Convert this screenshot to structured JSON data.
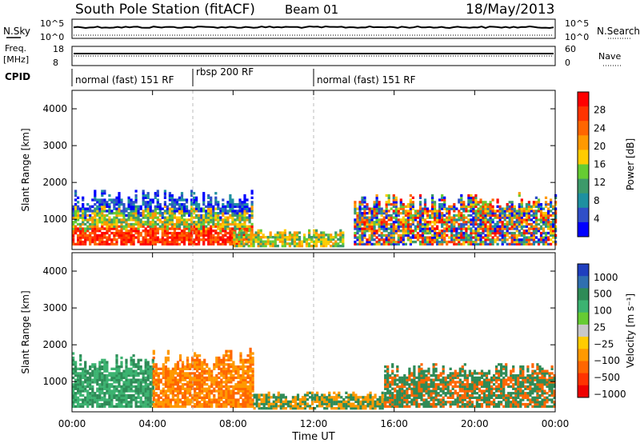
{
  "header": {
    "station": "South Pole Station (fitACF)",
    "beam": "Beam 01",
    "date": "18/May/2013"
  },
  "strip_labels": {
    "nsky": "N.Sky",
    "nsearch": "N.Search",
    "freq": "Freq.",
    "freq_unit": "[MHz]",
    "nave": "Nave",
    "cpid": "CPID",
    "nsky_ticks": [
      "10^5",
      "10^0"
    ],
    "nsearch_ticks": [
      "10^5",
      "10^0"
    ],
    "freq_ticks": [
      "18",
      "8"
    ],
    "nave_ticks": [
      "60",
      "0"
    ]
  },
  "modes": [
    {
      "label": "normal (fast) 151 RF",
      "start_hour": 0
    },
    {
      "label": "rbsp 200 RF",
      "start_hour": 6
    },
    {
      "label": "normal (fast) 151 RF",
      "start_hour": 12
    }
  ],
  "chart_data": [
    {
      "type": "heatmap",
      "title": "",
      "xlabel": "Time UT",
      "ylabel": "Slant Range [km]",
      "xlim": [
        0,
        24
      ],
      "ylim": [
        180,
        4500
      ],
      "x_ticks": [
        "00:00",
        "04:00",
        "08:00",
        "12:00",
        "16:00",
        "20:00",
        "00:00"
      ],
      "y_ticks": [
        "1000",
        "2000",
        "3000",
        "4000"
      ],
      "colorbar": {
        "label": "Power [dB]",
        "ticks": [
          "4",
          "8",
          "12",
          "16",
          "20",
          "24",
          "28"
        ],
        "colors": [
          "#0000ff",
          "#2f4fc8",
          "#1e90a0",
          "#3d9a6a",
          "#66cc33",
          "#ffcc00",
          "#ff9900",
          "#ff6600",
          "#ff3300",
          "#ff0000"
        ]
      },
      "regions": [
        {
          "t0": 0.0,
          "t1": 9.0,
          "r0": 300,
          "r1": 1800,
          "level": "high"
        },
        {
          "t0": 8.0,
          "t1": 13.5,
          "r0": 250,
          "r1": 700,
          "level": "medium"
        },
        {
          "t0": 14.0,
          "t1": 24.0,
          "r0": 300,
          "r1": 1700,
          "level": "mixed"
        }
      ]
    },
    {
      "type": "heatmap",
      "title": "",
      "xlabel": "Time UT",
      "ylabel": "Slant Range [km]",
      "xlim": [
        0,
        24
      ],
      "ylim": [
        180,
        4500
      ],
      "x_ticks": [
        "00:00",
        "04:00",
        "08:00",
        "12:00",
        "16:00",
        "20:00",
        "00:00"
      ],
      "y_ticks": [
        "1000",
        "2000",
        "3000",
        "4000"
      ],
      "colorbar": {
        "label": "Velocity [m s⁻¹]",
        "ticks": [
          "1000",
          "500",
          "100",
          "25",
          "−25",
          "−100",
          "−500",
          "−1000"
        ],
        "colors": [
          "#1f3fbf",
          "#2f6fb0",
          "#2e8b57",
          "#3cb371",
          "#66cc33",
          "#c8c8c8",
          "#ffcc00",
          "#ff9900",
          "#ff6600",
          "#ff3300",
          "#ee0000"
        ]
      },
      "regions": [
        {
          "t0": 0.0,
          "t1": 4.0,
          "r0": 300,
          "r1": 1800,
          "level": "green"
        },
        {
          "t0": 4.0,
          "t1": 9.0,
          "r0": 300,
          "r1": 1900,
          "level": "orange"
        },
        {
          "t0": 9.0,
          "t1": 15.5,
          "r0": 250,
          "r1": 700,
          "level": "orange-green"
        },
        {
          "t0": 15.5,
          "t1": 24.0,
          "r0": 300,
          "r1": 1500,
          "level": "green-orange"
        }
      ]
    }
  ]
}
